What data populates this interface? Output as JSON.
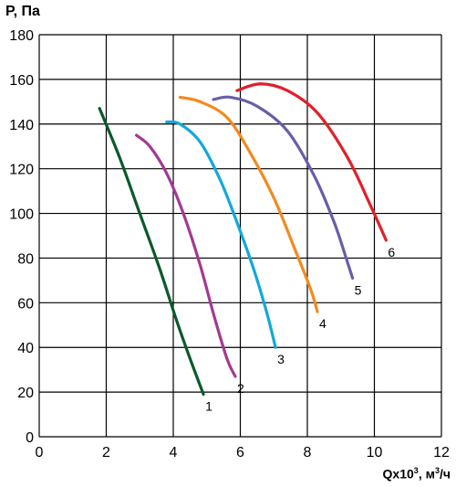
{
  "chart_data": {
    "type": "line",
    "ylabel": "P, Па",
    "xlabel": {
      "prefix": "Qx10",
      "sup1": "3",
      "mid": ", м",
      "sup2": "3",
      "suffix": "/ч"
    },
    "xlim": [
      0,
      12
    ],
    "ylim": [
      0,
      180
    ],
    "xticks": [
      0,
      2,
      4,
      6,
      8,
      10,
      12
    ],
    "yticks": [
      0,
      20,
      40,
      60,
      80,
      100,
      120,
      140,
      160,
      180
    ],
    "grid": true,
    "series": [
      {
        "name": "1",
        "color": "#0b5a2a",
        "points": [
          [
            1.8,
            147
          ],
          [
            2.4,
            125
          ],
          [
            3.0,
            100
          ],
          [
            3.6,
            75
          ],
          [
            4.1,
            52
          ],
          [
            4.5,
            35
          ],
          [
            4.9,
            19
          ]
        ]
      },
      {
        "name": "2",
        "color": "#a23a93",
        "points": [
          [
            2.9,
            135
          ],
          [
            3.3,
            130
          ],
          [
            3.8,
            118
          ],
          [
            4.3,
            100
          ],
          [
            4.8,
            77
          ],
          [
            5.2,
            55
          ],
          [
            5.6,
            35
          ],
          [
            5.85,
            27
          ]
        ]
      },
      {
        "name": "3",
        "color": "#12a8dc",
        "points": [
          [
            3.8,
            141
          ],
          [
            4.2,
            140
          ],
          [
            4.8,
            132
          ],
          [
            5.4,
            115
          ],
          [
            5.9,
            96
          ],
          [
            6.4,
            75
          ],
          [
            6.8,
            55
          ],
          [
            7.05,
            40
          ]
        ]
      },
      {
        "name": "4",
        "color": "#f28a1e",
        "points": [
          [
            4.2,
            152
          ],
          [
            4.8,
            150
          ],
          [
            5.6,
            143
          ],
          [
            6.3,
            127
          ],
          [
            7.0,
            107
          ],
          [
            7.6,
            85
          ],
          [
            8.1,
            66
          ],
          [
            8.3,
            56
          ]
        ]
      },
      {
        "name": "5",
        "color": "#6b5ca8",
        "points": [
          [
            5.2,
            151
          ],
          [
            5.7,
            152
          ],
          [
            6.5,
            148
          ],
          [
            7.4,
            137
          ],
          [
            8.2,
            117
          ],
          [
            8.8,
            96
          ],
          [
            9.2,
            78
          ],
          [
            9.35,
            71
          ]
        ]
      },
      {
        "name": "6",
        "color": "#e0202a",
        "points": [
          [
            5.9,
            155
          ],
          [
            6.6,
            158
          ],
          [
            7.4,
            155
          ],
          [
            8.3,
            145
          ],
          [
            9.2,
            125
          ],
          [
            9.9,
            103
          ],
          [
            10.35,
            88
          ]
        ]
      }
    ]
  }
}
